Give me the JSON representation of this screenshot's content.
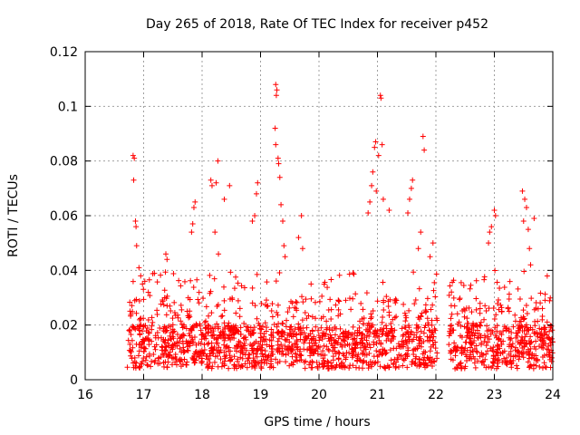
{
  "chart_data": {
    "type": "scatter",
    "title": "Day 265 of 2018, Rate Of TEC Index for receiver p452",
    "xlabel": "GPS time / hours",
    "ylabel": "ROTI / TECUs",
    "xlim": [
      16,
      24
    ],
    "ylim": [
      0,
      0.12
    ],
    "xticks": [
      16,
      17,
      18,
      19,
      20,
      21,
      22,
      23,
      24
    ],
    "xtick_labels": [
      "16",
      "17",
      "18",
      "19",
      "20",
      "21",
      "22",
      "23",
      "24"
    ],
    "yticks": [
      0,
      0.02,
      0.04,
      0.06,
      0.08,
      0.1,
      0.12
    ],
    "ytick_labels": [
      "0",
      "0.02",
      "0.04",
      "0.06",
      "0.08",
      "0.1",
      "0.12"
    ],
    "grid": true,
    "marker": "+",
    "color": "#ff0000",
    "series": [
      {
        "name": "ROTI",
        "note": "dense band 0.003-0.03 TECU/min over 16.7-22.0 h and 22.2-24.0 h; representative peaks listed",
        "points": [
          [
            16.82,
            0.082
          ],
          [
            16.84,
            0.081
          ],
          [
            16.83,
            0.073
          ],
          [
            16.86,
            0.058
          ],
          [
            16.87,
            0.056
          ],
          [
            16.88,
            0.049
          ],
          [
            16.92,
            0.041
          ],
          [
            16.95,
            0.038
          ],
          [
            16.98,
            0.035
          ],
          [
            17.02,
            0.036
          ],
          [
            17.08,
            0.032
          ],
          [
            17.38,
            0.046
          ],
          [
            17.4,
            0.044
          ],
          [
            17.88,
            0.065
          ],
          [
            17.86,
            0.063
          ],
          [
            17.84,
            0.057
          ],
          [
            17.82,
            0.054
          ],
          [
            18.15,
            0.073
          ],
          [
            18.17,
            0.071
          ],
          [
            18.27,
            0.08
          ],
          [
            18.24,
            0.072
          ],
          [
            18.22,
            0.054
          ],
          [
            18.28,
            0.046
          ],
          [
            18.38,
            0.066
          ],
          [
            18.47,
            0.071
          ],
          [
            18.95,
            0.072
          ],
          [
            18.93,
            0.068
          ],
          [
            18.9,
            0.06
          ],
          [
            18.86,
            0.058
          ],
          [
            19.26,
            0.108
          ],
          [
            19.28,
            0.106
          ],
          [
            19.27,
            0.104
          ],
          [
            19.25,
            0.092
          ],
          [
            19.26,
            0.086
          ],
          [
            19.3,
            0.081
          ],
          [
            19.31,
            0.079
          ],
          [
            19.33,
            0.074
          ],
          [
            19.35,
            0.064
          ],
          [
            19.38,
            0.058
          ],
          [
            19.4,
            0.049
          ],
          [
            19.42,
            0.045
          ],
          [
            19.7,
            0.06
          ],
          [
            19.65,
            0.052
          ],
          [
            19.72,
            0.048
          ],
          [
            20.97,
            0.087
          ],
          [
            20.95,
            0.085
          ],
          [
            20.92,
            0.076
          ],
          [
            20.9,
            0.071
          ],
          [
            20.98,
            0.069
          ],
          [
            20.87,
            0.065
          ],
          [
            20.84,
            0.061
          ],
          [
            21.05,
            0.104
          ],
          [
            21.06,
            0.103
          ],
          [
            21.08,
            0.086
          ],
          [
            21.02,
            0.082
          ],
          [
            21.1,
            0.066
          ],
          [
            21.2,
            0.062
          ],
          [
            21.6,
            0.073
          ],
          [
            21.58,
            0.07
          ],
          [
            21.55,
            0.066
          ],
          [
            21.52,
            0.061
          ],
          [
            21.78,
            0.089
          ],
          [
            21.8,
            0.084
          ],
          [
            21.74,
            0.054
          ],
          [
            21.7,
            0.048
          ],
          [
            21.95,
            0.05
          ],
          [
            21.9,
            0.045
          ],
          [
            23.0,
            0.062
          ],
          [
            23.02,
            0.06
          ],
          [
            22.95,
            0.056
          ],
          [
            22.92,
            0.054
          ],
          [
            22.9,
            0.05
          ],
          [
            23.48,
            0.069
          ],
          [
            23.52,
            0.066
          ],
          [
            23.55,
            0.063
          ],
          [
            23.5,
            0.058
          ],
          [
            23.58,
            0.055
          ],
          [
            23.6,
            0.048
          ],
          [
            23.68,
            0.059
          ],
          [
            23.62,
            0.042
          ]
        ]
      }
    ]
  }
}
